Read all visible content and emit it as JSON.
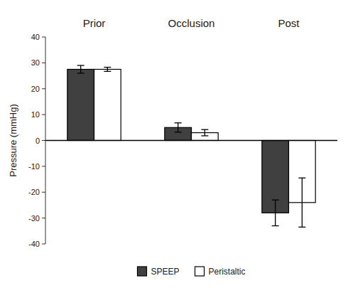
{
  "chart_data": {
    "type": "bar",
    "y_label": "Pressure (mmHg)",
    "categories": [
      "Prior",
      "Occlusion",
      "Post"
    ],
    "series": [
      {
        "name": "SPEEP",
        "color": "#404040",
        "values": [
          27.5,
          5.0,
          -28.0
        ],
        "errors": [
          1.5,
          1.8,
          5.0
        ]
      },
      {
        "name": "Peristaltic",
        "color": "#ffffff",
        "values": [
          27.5,
          3.0,
          -24.0
        ],
        "errors": [
          0.8,
          1.2,
          9.5
        ]
      }
    ],
    "ylim": [
      -40,
      40
    ],
    "yticks": [
      -40,
      -30,
      -20,
      -10,
      0,
      10,
      20,
      30,
      40
    ],
    "grid": false,
    "legend": "bottom"
  }
}
